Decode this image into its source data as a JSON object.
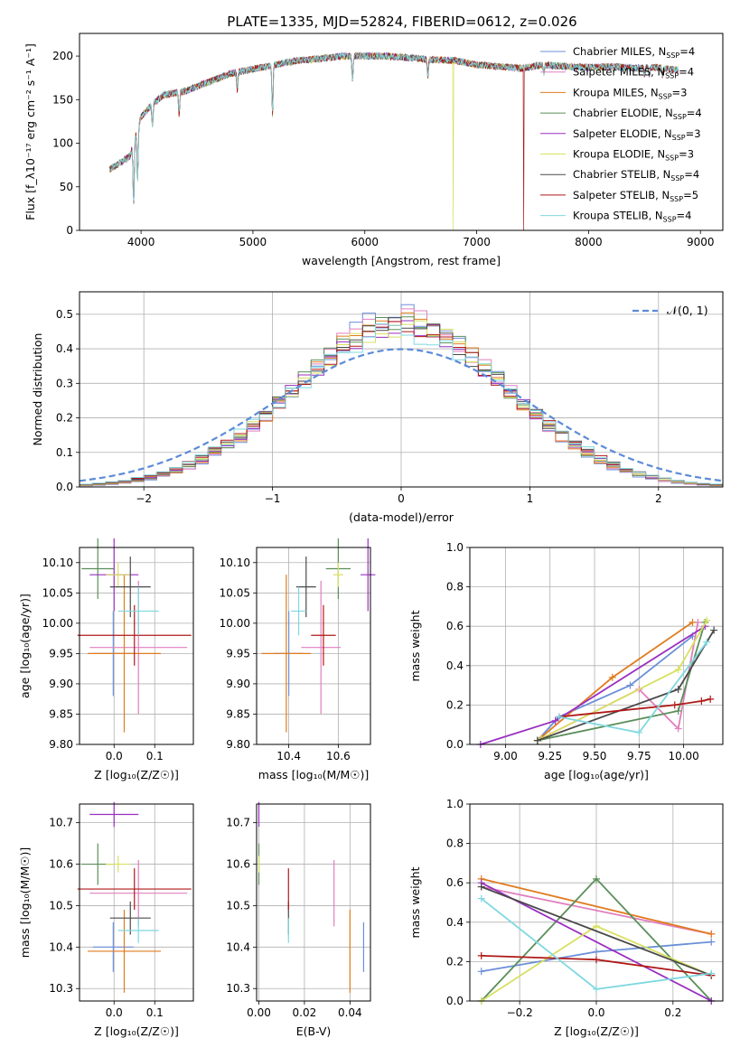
{
  "title": "PLATE=1335, MJD=52824, FIBERID=0612, z=0.026",
  "models": [
    {
      "name": "Chabrier MILES",
      "n": "4",
      "color": "#6b8fd8"
    },
    {
      "name": "Salpeter MILES",
      "n": "4",
      "color": "#e07fbf"
    },
    {
      "name": "Kroupa MILES",
      "n": "3",
      "color": "#e07b1f"
    },
    {
      "name": "Chabrier ELODIE",
      "n": "4",
      "color": "#5a8f5a"
    },
    {
      "name": "Salpeter ELODIE",
      "n": "3",
      "color": "#9a2fc0"
    },
    {
      "name": "Kroupa ELODIE",
      "n": "3",
      "color": "#d8e060"
    },
    {
      "name": "Chabrier STELIB",
      "n": "4",
      "color": "#4a4a4a"
    },
    {
      "name": "Salpeter STELIB",
      "n": "5",
      "color": "#b01818"
    },
    {
      "name": "Kroupa STELIB",
      "n": "4",
      "color": "#7fd8e0"
    }
  ],
  "chart_data": [
    {
      "type": "line",
      "id": "spectrum",
      "xlabel": "wavelength [Angstrom, rest frame]",
      "ylabel": "Flux [f_λ10^-17 erg cm^-2 s^-1 A^-1]",
      "xlim": [
        3450,
        9200
      ],
      "ylim": [
        0,
        226
      ],
      "xticks": [
        4000,
        5000,
        6000,
        7000,
        8000,
        9000
      ],
      "yticks": [
        0,
        50,
        100,
        150,
        200
      ],
      "continuum_points": [
        [
          3720,
          70
        ],
        [
          3900,
          85
        ],
        [
          3950,
          110
        ],
        [
          4000,
          130
        ],
        [
          4100,
          145
        ],
        [
          4200,
          155
        ],
        [
          4400,
          160
        ],
        [
          4600,
          170
        ],
        [
          4800,
          180
        ],
        [
          5000,
          185
        ],
        [
          5200,
          190
        ],
        [
          5400,
          195
        ],
        [
          5600,
          197
        ],
        [
          5800,
          200
        ],
        [
          6000,
          200
        ],
        [
          6200,
          200
        ],
        [
          6400,
          198
        ],
        [
          6600,
          196
        ],
        [
          6800,
          195
        ],
        [
          7000,
          190
        ],
        [
          7200,
          188
        ],
        [
          7400,
          186
        ],
        [
          7600,
          190
        ],
        [
          7800,
          188
        ],
        [
          8000,
          187
        ],
        [
          8200,
          188
        ],
        [
          8400,
          186
        ],
        [
          8600,
          187
        ],
        [
          8800,
          184
        ]
      ],
      "dropouts": [
        {
          "model": "Kroupa ELODIE",
          "x": 6790
        },
        {
          "model": "Salpeter STELIB",
          "x": 7420
        }
      ],
      "grid": false,
      "legend": "top-right"
    },
    {
      "type": "histogram",
      "id": "residuals",
      "xlabel": "(data-model)/error",
      "ylabel": "Normed distribution",
      "xlim": [
        -2.5,
        2.5
      ],
      "ylim": [
        0,
        0.565
      ],
      "xticks": [
        -2,
        -1,
        0,
        1,
        2
      ],
      "yticks": [
        0.0,
        0.1,
        0.2,
        0.3,
        0.4,
        0.5
      ],
      "reference": {
        "name": "𝒩(0, 1)",
        "mean": 0,
        "sigma": 1
      },
      "bin_width": 0.1,
      "grid": true,
      "legend": "top-right"
    },
    {
      "type": "scatter",
      "id": "z-age",
      "xlabel": "Z [log10(Z/Z☉)]",
      "ylabel": "age  [log10(age/yr)]",
      "xlim": [
        -0.085,
        0.195
      ],
      "ylim": [
        9.8,
        10.125
      ],
      "xticks": [
        0.0,
        0.1
      ],
      "yticks": [
        9.8,
        9.85,
        9.9,
        9.95,
        10.0,
        10.05,
        10.1
      ],
      "grid": true
    },
    {
      "type": "scatter",
      "id": "mass-age",
      "xlabel": "mass [log10(M/M☉)]",
      "ylabel": "",
      "xlim": [
        10.27,
        10.73
      ],
      "ylim": [
        9.8,
        10.125
      ],
      "xticks": [
        10.4,
        10.6
      ],
      "yticks": [
        9.8,
        9.85,
        9.9,
        9.95,
        10.0,
        10.05,
        10.1
      ],
      "grid": true
    },
    {
      "type": "line",
      "id": "age-weight",
      "xlabel": "age  [log10(age/yr)]",
      "ylabel": "mass weight",
      "xlim": [
        8.8,
        10.22
      ],
      "ylim": [
        0,
        1.0
      ],
      "xticks": [
        9.0,
        9.25,
        9.5,
        9.75,
        10.0
      ],
      "yticks": [
        0.0,
        0.2,
        0.4,
        0.6,
        0.8,
        1.0
      ],
      "grid": true
    },
    {
      "type": "scatter",
      "id": "z-mass",
      "xlabel": "Z [log10(Z/Z☉)]",
      "ylabel": "mass [log10(M/M☉)]",
      "xlim": [
        -0.085,
        0.195
      ],
      "ylim": [
        10.27,
        10.745
      ],
      "xticks": [
        0.0,
        0.1
      ],
      "yticks": [
        10.3,
        10.4,
        10.5,
        10.6,
        10.7
      ],
      "grid": true
    },
    {
      "type": "scatter",
      "id": "ebv-mass",
      "xlabel": "E(B-V)",
      "ylabel": "",
      "xlim": [
        -0.001,
        0.049
      ],
      "ylim": [
        10.27,
        10.745
      ],
      "xticks": [
        0.0,
        0.02,
        0.04
      ],
      "yticks": [
        10.3,
        10.4,
        10.5,
        10.6,
        10.7
      ],
      "grid": true
    },
    {
      "type": "line",
      "id": "z-weight",
      "xlabel": "Z [log10(Z/Z☉)]",
      "ylabel": "mass weight",
      "xlim": [
        -0.33,
        0.33
      ],
      "ylim": [
        0,
        1.0
      ],
      "xticks": [
        -0.2,
        0.0,
        0.2
      ],
      "yticks": [
        0.0,
        0.2,
        0.4,
        0.6,
        0.8,
        1.0
      ],
      "grid": true
    }
  ],
  "fits": [
    {
      "model": "Chabrier MILES",
      "age": 9.95,
      "age_err": 0.07,
      "z": -0.002,
      "z_err": 0.05,
      "mass": 10.4,
      "mass_err": 0.06,
      "ebv": 0.046,
      "ebv_err": 0.015,
      "age_w": [
        [
          9.18,
          0.02
        ],
        [
          9.3,
          0.14
        ],
        [
          9.7,
          0.3
        ],
        [
          10.05,
          0.55
        ]
      ],
      "z_w": [
        [
          -0.3,
          0.15
        ],
        [
          0.0,
          0.25
        ],
        [
          0.3,
          0.3
        ]
      ]
    },
    {
      "model": "Salpeter MILES",
      "age": 9.96,
      "age_err": 0.11,
      "z": 0.06,
      "z_err": 0.12,
      "mass": 10.53,
      "mass_err": 0.08,
      "ebv": 0.033,
      "ebv_err": 0.08,
      "age_w": [
        [
          9.2,
          0.03
        ],
        [
          9.75,
          0.28
        ],
        [
          9.97,
          0.08
        ],
        [
          10.08,
          0.62
        ]
      ],
      "z_w": [
        [
          -0.3,
          0.58
        ],
        [
          0.3,
          0.34
        ]
      ]
    },
    {
      "model": "Kroupa MILES",
      "age": 9.95,
      "age_err": 0.13,
      "z": 0.025,
      "z_err": 0.09,
      "mass": 10.39,
      "mass_err": 0.1,
      "ebv": 0.04,
      "ebv_err": 0.14,
      "age_w": [
        [
          9.18,
          0.02
        ],
        [
          9.6,
          0.34
        ],
        [
          10.05,
          0.62
        ]
      ],
      "z_w": [
        [
          -0.3,
          0.62
        ],
        [
          0.3,
          0.34
        ]
      ]
    },
    {
      "model": "Chabrier ELODIE",
      "age": 10.09,
      "age_err": 0.05,
      "z": -0.04,
      "z_err": 0.04,
      "mass": 10.6,
      "mass_err": 0.05,
      "ebv": 0.0,
      "ebv_err": 0.02,
      "age_w": [
        [
          9.18,
          0.02
        ],
        [
          9.97,
          0.17
        ],
        [
          10.12,
          0.62
        ]
      ],
      "z_w": [
        [
          -0.3,
          0.0
        ],
        [
          0.0,
          0.62
        ],
        [
          0.3,
          0.0
        ]
      ]
    },
    {
      "model": "Salpeter ELODIE",
      "age": 10.08,
      "age_err": 0.06,
      "z": 0.0,
      "z_err": 0.06,
      "mass": 10.72,
      "mass_err": 0.03,
      "ebv": 0.0,
      "ebv_err": 0.015,
      "age_w": [
        [
          8.86,
          0.0
        ],
        [
          9.28,
          0.12
        ],
        [
          10.12,
          0.6
        ]
      ],
      "z_w": [
        [
          -0.3,
          0.6
        ],
        [
          0.3,
          0.0
        ]
      ]
    },
    {
      "model": "Kroupa ELODIE",
      "age": 10.08,
      "age_err": 0.02,
      "z": 0.01,
      "z_err": 0.03,
      "mass": 10.6,
      "mass_err": 0.02,
      "ebv": 0.0,
      "ebv_err": 0.05,
      "age_w": [
        [
          9.2,
          0.03
        ],
        [
          9.97,
          0.38
        ],
        [
          10.13,
          0.63
        ]
      ],
      "z_w": [
        [
          -0.3,
          0.0
        ],
        [
          0.0,
          0.38
        ],
        [
          0.3,
          0.13
        ]
      ]
    },
    {
      "model": "Chabrier STELIB",
      "age": 10.06,
      "age_err": 0.05,
      "z": 0.04,
      "z_err": 0.05,
      "mass": 10.47,
      "mass_err": 0.04,
      "ebv": 0.013,
      "ebv_err": 0.02,
      "age_w": [
        [
          9.18,
          0.02
        ],
        [
          9.97,
          0.28
        ],
        [
          10.17,
          0.58
        ]
      ],
      "z_w": [
        [
          -0.3,
          0.58
        ],
        [
          0.3,
          0.13
        ]
      ]
    },
    {
      "model": "Salpeter STELIB",
      "age": 9.98,
      "age_err": 0.05,
      "z": 0.05,
      "z_err": 0.14,
      "mass": 10.54,
      "mass_err": 0.05,
      "ebv": 0.013,
      "ebv_err": 0.04,
      "age_w": [
        [
          9.3,
          0.14
        ],
        [
          9.95,
          0.2
        ],
        [
          10.1,
          0.22
        ],
        [
          10.15,
          0.23
        ]
      ],
      "z_w": [
        [
          -0.3,
          0.23
        ],
        [
          0.0,
          0.21
        ],
        [
          0.3,
          0.13
        ]
      ]
    },
    {
      "model": "Kroupa STELIB",
      "age": 10.02,
      "age_err": 0.04,
      "z": 0.06,
      "z_err": 0.05,
      "mass": 10.44,
      "mass_err": 0.03,
      "ebv": 0.013,
      "ebv_err": 0.02,
      "age_w": [
        [
          9.3,
          0.14
        ],
        [
          9.75,
          0.06
        ],
        [
          10.13,
          0.52
        ]
      ],
      "z_w": [
        [
          -0.3,
          0.52
        ],
        [
          0.0,
          0.06
        ],
        [
          0.3,
          0.14
        ]
      ]
    }
  ]
}
